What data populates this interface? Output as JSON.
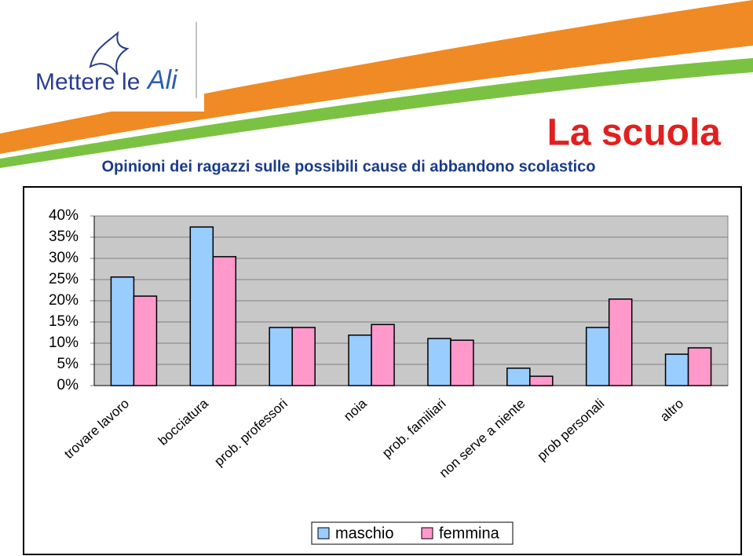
{
  "header": {
    "logo": "Mettere le",
    "logo_accent": "Ali",
    "title": "La scuola"
  },
  "chart_data": {
    "type": "bar",
    "title": "Opinioni dei ragazzi sulle possibili cause di abbandono scolastico",
    "categories": [
      "trovare lavoro",
      "bocciatura",
      "prob. professori",
      "noia",
      "prob. familiari",
      "non serve a niente",
      "prob personali",
      "altro"
    ],
    "series": [
      {
        "name": "maschio",
        "color": "#99ccff",
        "values": [
          25.6,
          37.4,
          13.7,
          11.9,
          11.1,
          4.1,
          13.7,
          7.4
        ]
      },
      {
        "name": "femmina",
        "color": "#ff99cc",
        "values": [
          21.1,
          30.4,
          13.7,
          14.4,
          10.7,
          2.2,
          20.4,
          8.9
        ]
      }
    ],
    "ylim": [
      0,
      40
    ],
    "yticks": [
      {
        "value": 0,
        "label": "0%"
      },
      {
        "value": 5,
        "label": "5%"
      },
      {
        "value": 10,
        "label": "10%"
      },
      {
        "value": 15,
        "label": "15%"
      },
      {
        "value": 20,
        "label": "20%"
      },
      {
        "value": 25,
        "label": "25%"
      },
      {
        "value": 30,
        "label": "30%"
      },
      {
        "value": 35,
        "label": "35%"
      },
      {
        "value": 40,
        "label": "40%"
      }
    ],
    "grid": true,
    "legend": "bottom"
  }
}
